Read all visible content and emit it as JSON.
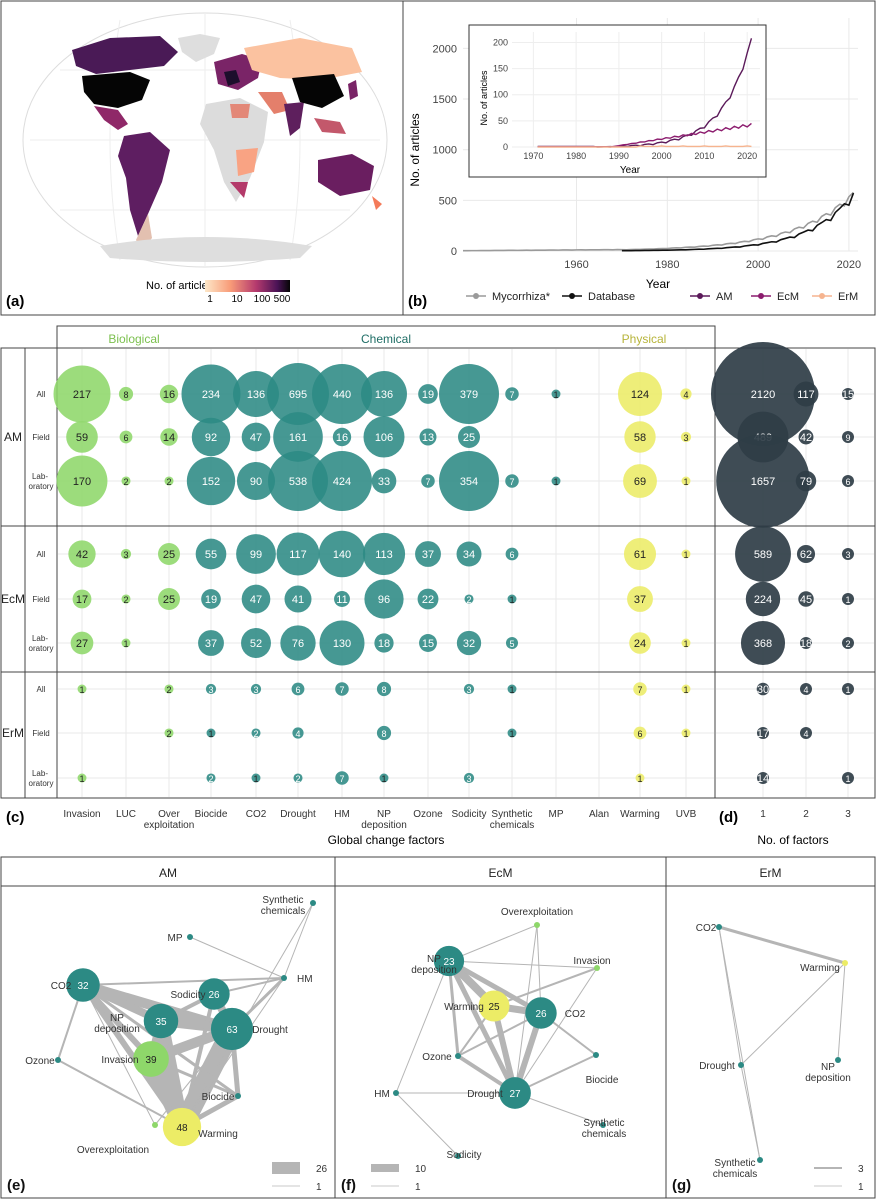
{
  "map": {
    "panel_label": "(a)",
    "legend_title": "No. of articles",
    "legend_ticks": [
      "1",
      "10",
      "100",
      "500"
    ]
  },
  "line_panel": {
    "panel_label": "(b)",
    "main": {
      "ylabel": "No. of articles",
      "xlabel": "Year",
      "xticks": [
        1960,
        1980,
        2000,
        2020
      ],
      "yticks": [
        0,
        500,
        1000,
        1500,
        2000
      ]
    },
    "inset": {
      "ylabel": "No. of articles",
      "xlabel": "Year",
      "xticks": [
        1970,
        1980,
        1990,
        2000,
        2010,
        2020
      ],
      "yticks": [
        0,
        50,
        100,
        150,
        200
      ]
    },
    "legend": [
      {
        "name": "Mycorrhiza*",
        "color": "#9a9a9a"
      },
      {
        "name": "Database",
        "color": "#111111"
      },
      {
        "name": "AM",
        "color": "#5b1a5a"
      },
      {
        "name": "EcM",
        "color": "#8c1c6e"
      },
      {
        "name": "ErM",
        "color": "#f6b48f"
      }
    ]
  },
  "bubble_panel": {
    "panel_label": "(c)",
    "panel_label_d": "(d)",
    "categories": [
      "Biological",
      "Chemical",
      "Physical"
    ],
    "category_colors": {
      "Biological": "#7cc04f",
      "Chemical": "#2d8a82",
      "Physical": "#b7b43a"
    },
    "factors": [
      "Invasion",
      "LUC",
      "Over\nexploitation",
      "Biocide",
      "CO2",
      "Drought",
      "HM",
      "NP\ndeposition",
      "Ozone",
      "Sodicity",
      "Synthetic\nchemicals",
      "MP",
      "Alan",
      "Warming",
      "UVB"
    ],
    "xlabel": "Global change factors",
    "nfactors_xlabel": "No. of factors",
    "nfactors_ticks": [
      "1",
      "2",
      "3"
    ],
    "groups": [
      {
        "name": "AM",
        "rows": [
          {
            "label": "All",
            "values": [
              217,
              8,
              16,
              234,
              136,
              695,
              440,
              136,
              19,
              379,
              7,
              1,
              null,
              124,
              4
            ],
            "nf": [
              2120,
              117,
              15
            ]
          },
          {
            "label": "Field",
            "values": [
              59,
              6,
              14,
              92,
              47,
              161,
              16,
              106,
              13,
              25,
              null,
              null,
              null,
              58,
              3
            ],
            "nf": [
              489,
              42,
              9
            ]
          },
          {
            "label": "Laboratory",
            "values": [
              170,
              2,
              2,
              152,
              90,
              538,
              424,
              33,
              7,
              354,
              7,
              1,
              null,
              69,
              1
            ],
            "nf": [
              1657,
              79,
              6
            ]
          }
        ]
      },
      {
        "name": "EcM",
        "rows": [
          {
            "label": "All",
            "values": [
              42,
              3,
              25,
              55,
              99,
              117,
              140,
              113,
              37,
              34,
              6,
              null,
              null,
              61,
              1
            ],
            "nf": [
              589,
              62,
              3
            ]
          },
          {
            "label": "Field",
            "values": [
              17,
              2,
              25,
              19,
              47,
              41,
              11,
              96,
              22,
              2,
              1,
              null,
              null,
              37,
              null
            ],
            "nf": [
              224,
              45,
              1
            ]
          },
          {
            "label": "Laboratory",
            "values": [
              27,
              1,
              null,
              37,
              52,
              76,
              130,
              18,
              15,
              32,
              5,
              null,
              null,
              24,
              1
            ],
            "nf": [
              368,
              18,
              2
            ]
          }
        ]
      },
      {
        "name": "ErM",
        "rows": [
          {
            "label": "All",
            "values": [
              1,
              null,
              2,
              3,
              3,
              6,
              7,
              8,
              null,
              3,
              1,
              null,
              null,
              7,
              1
            ],
            "nf": [
              30,
              4,
              1
            ]
          },
          {
            "label": "Field",
            "values": [
              null,
              null,
              2,
              1,
              2,
              4,
              null,
              8,
              null,
              null,
              1,
              null,
              null,
              6,
              1
            ],
            "nf": [
              17,
              4,
              null
            ]
          },
          {
            "label": "Laboratory",
            "values": [
              1,
              null,
              null,
              2,
              1,
              2,
              7,
              1,
              null,
              3,
              null,
              null,
              null,
              1,
              null
            ],
            "nf": [
              14,
              null,
              1
            ]
          }
        ]
      }
    ]
  },
  "networks": [
    {
      "title": "AM",
      "panel_label": "(e)",
      "legend_max": "26",
      "legend_min": "1",
      "nodes": [
        {
          "id": "Synthetic\nchemicals",
          "v": null
        },
        {
          "id": "MP",
          "v": null
        },
        {
          "id": "HM",
          "v": null
        },
        {
          "id": "CO2",
          "v": "32"
        },
        {
          "id": "Sodicity",
          "v": "26"
        },
        {
          "id": "NP\ndeposition",
          "v": "35"
        },
        {
          "id": "Drought",
          "v": "63"
        },
        {
          "id": "Ozone",
          "v": null
        },
        {
          "id": "Invasion",
          "v": "39"
        },
        {
          "id": "Biocide",
          "v": null
        },
        {
          "id": "Warming",
          "v": "48"
        },
        {
          "id": "Overexploitation",
          "v": null
        }
      ]
    },
    {
      "title": "EcM",
      "panel_label": "(f)",
      "legend_max": "10",
      "legend_min": "1",
      "nodes": [
        {
          "id": "Overexploitation",
          "v": null
        },
        {
          "id": "NP\ndeposition",
          "v": "23"
        },
        {
          "id": "Invasion",
          "v": null
        },
        {
          "id": "Warming",
          "v": "25"
        },
        {
          "id": "CO2",
          "v": "26"
        },
        {
          "id": "Ozone",
          "v": null
        },
        {
          "id": "Biocide",
          "v": null
        },
        {
          "id": "HM",
          "v": null
        },
        {
          "id": "Drought",
          "v": "27"
        },
        {
          "id": "Synthetic\nchemicals",
          "v": null
        },
        {
          "id": "Sodicity",
          "v": null
        }
      ]
    },
    {
      "title": "ErM",
      "panel_label": "(g)",
      "legend_max": "3",
      "legend_min": "1",
      "nodes": [
        {
          "id": "CO2",
          "v": null
        },
        {
          "id": "Warming",
          "v": null
        },
        {
          "id": "Drought",
          "v": null
        },
        {
          "id": "NP\ndeposition",
          "v": null
        },
        {
          "id": "Synthetic\nchemicals",
          "v": null
        }
      ]
    }
  ]
}
